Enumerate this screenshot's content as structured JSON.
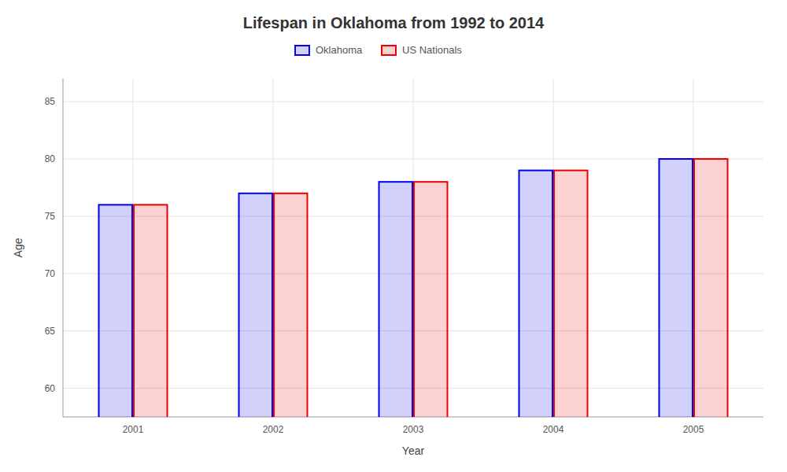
{
  "chart_data": {
    "type": "bar",
    "title": "Lifespan in Oklahoma from 1992 to 2014",
    "xlabel": "Year",
    "ylabel": "Age",
    "categories": [
      "2001",
      "2002",
      "2003",
      "2004",
      "2005"
    ],
    "series": [
      {
        "name": "Oklahoma",
        "color": "#0000ee",
        "values": [
          76,
          77,
          78,
          79,
          80
        ]
      },
      {
        "name": "US Nationals",
        "color": "#ee0000",
        "values": [
          76,
          77,
          78,
          79,
          80
        ]
      }
    ],
    "ylim": [
      57.5,
      87
    ],
    "yticks": [
      60,
      65,
      70,
      75,
      80,
      85
    ],
    "grid": true,
    "legend": "top"
  }
}
